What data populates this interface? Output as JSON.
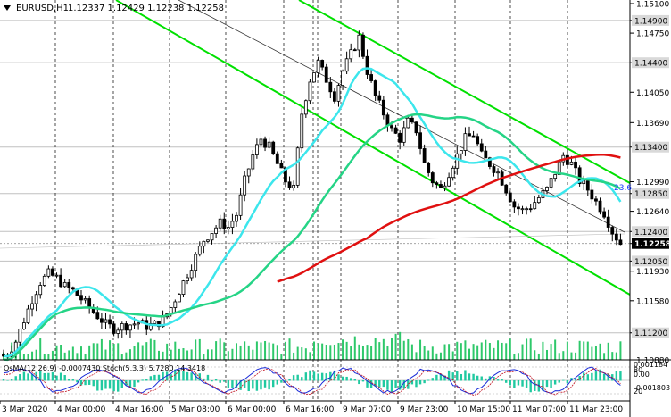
{
  "chart_data": {
    "type": "candlestick",
    "symbol_label": "EURUSD,H1",
    "ohlc_label": "1.12337 1.12429 1.12238 1.12258",
    "current_price": "1.12258",
    "y_range": [
      1.1088,
      1.151
    ],
    "price_ticks": [
      "1.15100",
      "1.14900",
      "1.14750",
      "1.14400",
      "1.14050",
      "1.13690",
      "1.13400",
      "1.12990",
      "1.12850",
      "1.12640",
      "1.12400",
      "1.12258",
      "1.12050",
      "1.11930",
      "1.11580",
      "1.11200",
      "1.10880"
    ],
    "highlighted_levels": [
      "1.14900",
      "1.14400",
      "1.13400",
      "1.12850",
      "1.12400",
      "1.12050",
      "1.11200"
    ],
    "x_labels": [
      "3 Mar 2020",
      "4 Mar 00:00",
      "4 Mar 16:00",
      "5 Mar 08:00",
      "6 Mar 00:00",
      "6 Mar 16:00",
      "9 Mar 07:00",
      "9 Mar 23:00",
      "10 Mar 15:00",
      "11 Mar 07:00",
      "11 Mar 23:00"
    ],
    "fib_label": "23.6",
    "sub_indicator_label": "OsMA(12,26,9) -0.0007430  Stoch(5,3,3) 5.7280 14.3418",
    "sub_ticks": [
      "0.001184",
      "0.00",
      "-0.001803"
    ],
    "sub_levels_labels": [
      "80",
      "20"
    ],
    "close_series": [
      1.1095,
      1.111,
      1.1135,
      1.116,
      1.118,
      1.119,
      1.1185,
      1.1175,
      1.117,
      1.116,
      1.115,
      1.114,
      1.113,
      1.1125,
      1.1128,
      1.113,
      1.1132,
      1.1128,
      1.113,
      1.1135,
      1.115,
      1.117,
      1.119,
      1.121,
      1.123,
      1.124,
      1.125,
      1.1245,
      1.126,
      1.13,
      1.133,
      1.135,
      1.134,
      1.132,
      1.13,
      1.129,
      1.138,
      1.142,
      1.144,
      1.142,
      1.14,
      1.143,
      1.145,
      1.147,
      1.143,
      1.14,
      1.138,
      1.136,
      1.135,
      1.137,
      1.136,
      1.132,
      1.13,
      1.129,
      1.131,
      1.133,
      1.135,
      1.1355,
      1.133,
      1.132,
      1.131,
      1.129,
      1.127,
      1.1265,
      1.127,
      1.128,
      1.129,
      1.131,
      1.133,
      1.132,
      1.13,
      1.129,
      1.1275,
      1.1262,
      1.124,
      1.1226
    ],
    "trend_lines_color": "#00e000",
    "ma_colors": {
      "fast": "#3ce6ec",
      "mid": "#25d486",
      "slow": "#e01010"
    },
    "volume_color": "#2ec86a"
  }
}
